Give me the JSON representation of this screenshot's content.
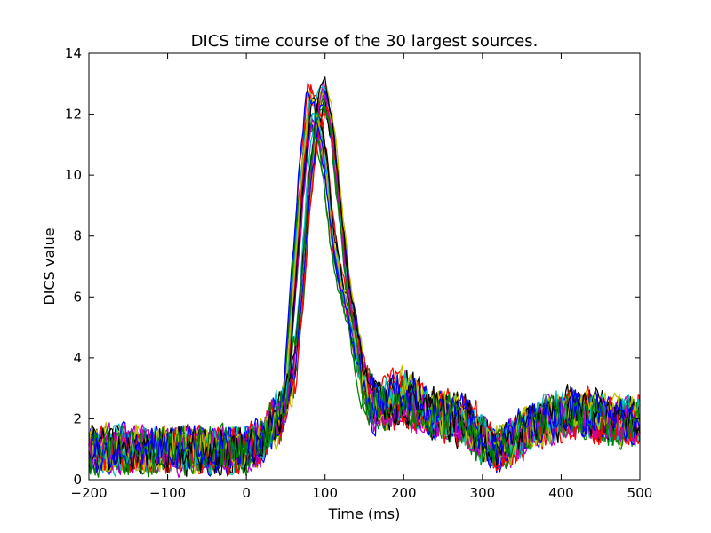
{
  "chart_data": {
    "type": "line",
    "title": "DICS time course of the 30 largest sources.",
    "xlabel": "Time (ms)",
    "ylabel": "DICS value",
    "xlim": [
      -200,
      500
    ],
    "ylim": [
      0,
      14
    ],
    "xticks": [
      -200,
      -100,
      0,
      100,
      200,
      300,
      400,
      500
    ],
    "yticks": [
      0,
      2,
      4,
      6,
      8,
      10,
      12,
      14
    ],
    "xtick_labels": [
      "−200",
      "−100",
      "0",
      "100",
      "200",
      "300",
      "400",
      "500"
    ],
    "ytick_labels": [
      "0",
      "2",
      "4",
      "6",
      "8",
      "10",
      "12",
      "14"
    ],
    "grid": false,
    "legend": "none",
    "series_count": 30,
    "series_colors": [
      "#0000ff",
      "#008000",
      "#ff0000",
      "#00bfbf",
      "#bf00bf",
      "#bfbf00",
      "#000000"
    ],
    "envelope_early": {
      "x": [
        -200,
        -150,
        -100,
        -50,
        0,
        20,
        40,
        50,
        60,
        70,
        80,
        90,
        100,
        110,
        120,
        130,
        140,
        150,
        160,
        180,
        200,
        220,
        240,
        260,
        280,
        300,
        320,
        340,
        360,
        380,
        400,
        420,
        440,
        460,
        480,
        500
      ],
      "y": [
        1.0,
        1.0,
        1.0,
        1.0,
        1.0,
        1.4,
        2.2,
        3.0,
        6.5,
        10.0,
        12.7,
        12.0,
        10.5,
        8.0,
        6.5,
        5.5,
        4.2,
        3.0,
        2.4,
        2.6,
        3.0,
        2.5,
        2.2,
        2.2,
        2.0,
        1.5,
        1.0,
        1.4,
        1.8,
        2.0,
        2.2,
        2.3,
        2.2,
        2.0,
        2.0,
        2.2
      ]
    },
    "envelope_late": {
      "x": [
        -200,
        -150,
        -100,
        -50,
        0,
        20,
        40,
        50,
        60,
        70,
        80,
        90,
        100,
        110,
        120,
        130,
        140,
        150,
        160,
        180,
        200,
        220,
        240,
        260,
        280,
        300,
        320,
        340,
        360,
        380,
        400,
        420,
        440,
        460,
        480,
        500
      ],
      "y": [
        1.0,
        1.0,
        1.0,
        1.0,
        1.0,
        1.3,
        1.9,
        2.5,
        3.5,
        6.0,
        9.5,
        12.0,
        13.0,
        11.5,
        9.0,
        6.5,
        5.0,
        3.5,
        2.7,
        2.4,
        2.6,
        2.3,
        2.1,
        2.0,
        1.8,
        1.2,
        1.0,
        1.3,
        1.7,
        1.9,
        2.1,
        2.2,
        2.1,
        1.9,
        1.9,
        2.0
      ]
    }
  }
}
